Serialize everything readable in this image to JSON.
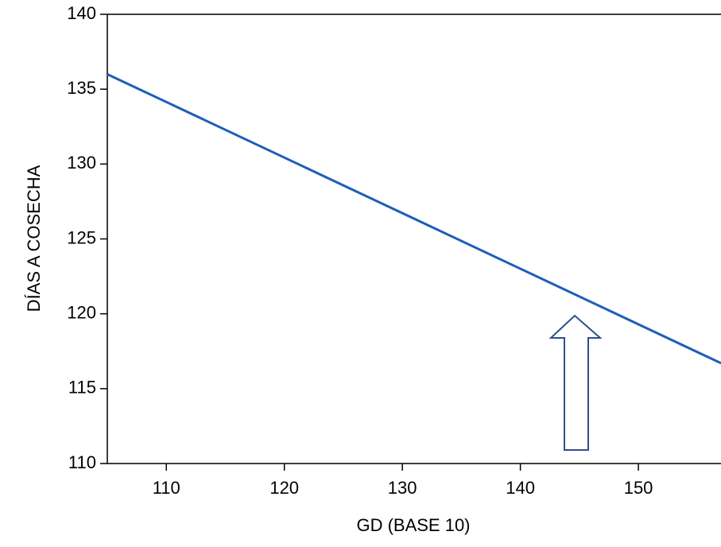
{
  "chart_data": {
    "type": "line",
    "x_label": "GD (BASE 10)",
    "y_label": "DÍAS A COSECHA",
    "x": [
      105,
      157
    ],
    "series": [
      {
        "color": "#1c5fb8",
        "values": [
          136,
          116.7
        ]
      }
    ],
    "xlim": [
      105,
      157
    ],
    "xticks": [
      110,
      120,
      130,
      140,
      150
    ],
    "ylim": [
      110,
      140
    ],
    "yticks": [
      110,
      115,
      120,
      125,
      130,
      135,
      140
    ],
    "grid": false
  }
}
